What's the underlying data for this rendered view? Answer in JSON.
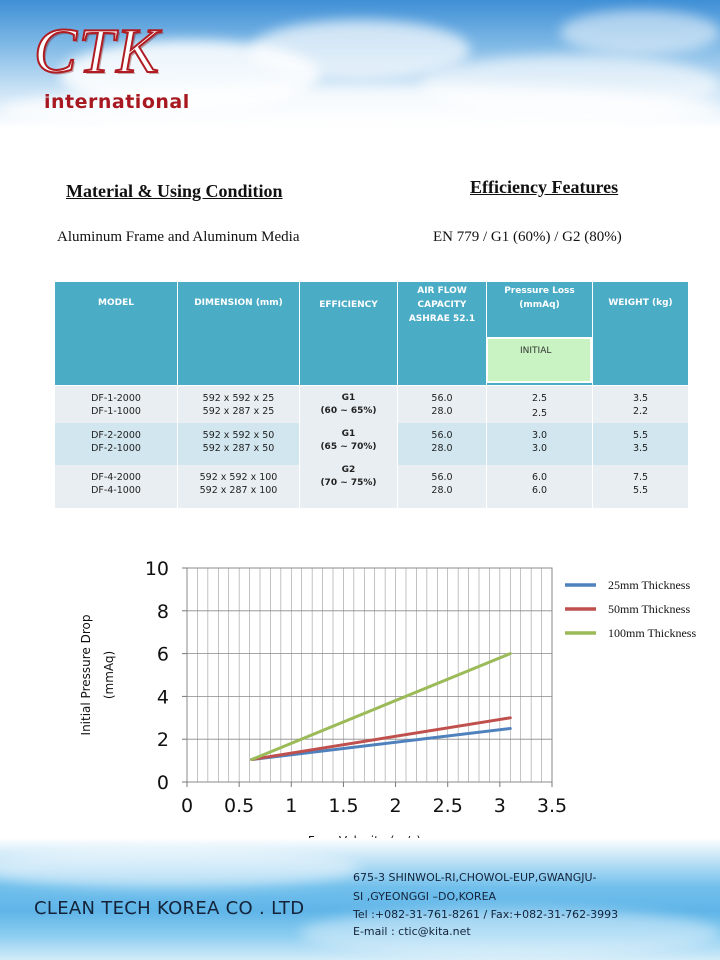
{
  "header": {
    "logo_main": "CTK",
    "logo_sub": "international"
  },
  "material": {
    "title": "Material & Using Condition",
    "text": "Aluminum Frame and Aluminum Media"
  },
  "efficiency": {
    "title": "Efficiency Features",
    "text": "EN 779 / G1 (60%) / G2 (80%)"
  },
  "table": {
    "headers": {
      "model": "MODEL",
      "dimension": [
        "DIMENSION",
        "(mm)"
      ],
      "efficiency": "EFFICIENCY",
      "airflow": [
        "AIR FLOW",
        "CAPACITY",
        "ASHRAE 52.1"
      ],
      "pressure": [
        "Pressure  Loss",
        "(mmAq)"
      ],
      "initial": "INITIAL",
      "weight": [
        "WEIGHT",
        "(kg)"
      ]
    },
    "efficiency_groups": [
      {
        "grade": "G1",
        "range": "(60 ~ 65%)"
      },
      {
        "grade": "G1",
        "range": "(65 ~ 70%)"
      },
      {
        "grade": "G2",
        "range": "(70 ~ 75%)"
      }
    ],
    "rows": [
      {
        "models": [
          "DF-1-2000",
          "DF-1-1000"
        ],
        "dims": [
          "592 x 592 x 25",
          "592 x 287 x 25"
        ],
        "airflow": [
          "56.0",
          "28.0"
        ],
        "pressure": [
          "2.5",
          "2.5"
        ],
        "weight": [
          "3.5",
          "2.2"
        ]
      },
      {
        "models": [
          "DF-2-2000",
          "DF-2-1000"
        ],
        "dims": [
          "592 x 592 x 50",
          "592 x 287 x 50"
        ],
        "airflow": [
          "56.0",
          "28.0"
        ],
        "pressure": [
          "3.0",
          "3.0"
        ],
        "weight": [
          "5.5",
          "3.5"
        ]
      },
      {
        "models": [
          "DF-4-2000",
          "DF-4-1000"
        ],
        "dims": [
          "592 x 592 x 100",
          "592 x 287 x 100"
        ],
        "airflow": [
          "56.0",
          "28.0"
        ],
        "pressure": [
          "6.0",
          "6.0"
        ],
        "weight": [
          "7.5",
          "5.5"
        ]
      }
    ]
  },
  "chart_data": {
    "type": "line",
    "title": "",
    "xlabel": "Face Velocity (m/s)",
    "ylabel": [
      "Initial  Pressure  Drop",
      "(mmAq)"
    ],
    "xlim": [
      0,
      3.5
    ],
    "ylim": [
      0,
      10
    ],
    "xticks": [
      "0",
      "0.5",
      "1",
      "1.5",
      "2",
      "2.5",
      "3",
      "3.5"
    ],
    "yticks": [
      "0",
      "2",
      "4",
      "6",
      "8",
      "10"
    ],
    "grid": true,
    "legend_position": "right",
    "series": [
      {
        "name": "25mm Thickness",
        "color": "#4f81bd",
        "x": [
          0.62,
          3.1
        ],
        "y": [
          1.05,
          2.5
        ]
      },
      {
        "name": "50mm Thickness",
        "color": "#c0504d",
        "x": [
          0.62,
          3.1
        ],
        "y": [
          1.05,
          3.0
        ]
      },
      {
        "name": "100mm Thickness",
        "color": "#9bbb59",
        "x": [
          0.62,
          3.1
        ],
        "y": [
          1.05,
          6.0
        ]
      }
    ]
  },
  "footer": {
    "company": "CLEAN TECH KOREA CO . LTD",
    "address_lines": [
      "675-3 SHINWOL-RI,CHOWOL-EUP,GWANGJU-",
      "SI ,GYEONGGI –DO,KOREA"
    ],
    "tel": "Tel :+082-31-761-8261",
    "fax": "/ Fax:+082-31-762-3993",
    "email": "E-mail : ctic@kita.net"
  }
}
